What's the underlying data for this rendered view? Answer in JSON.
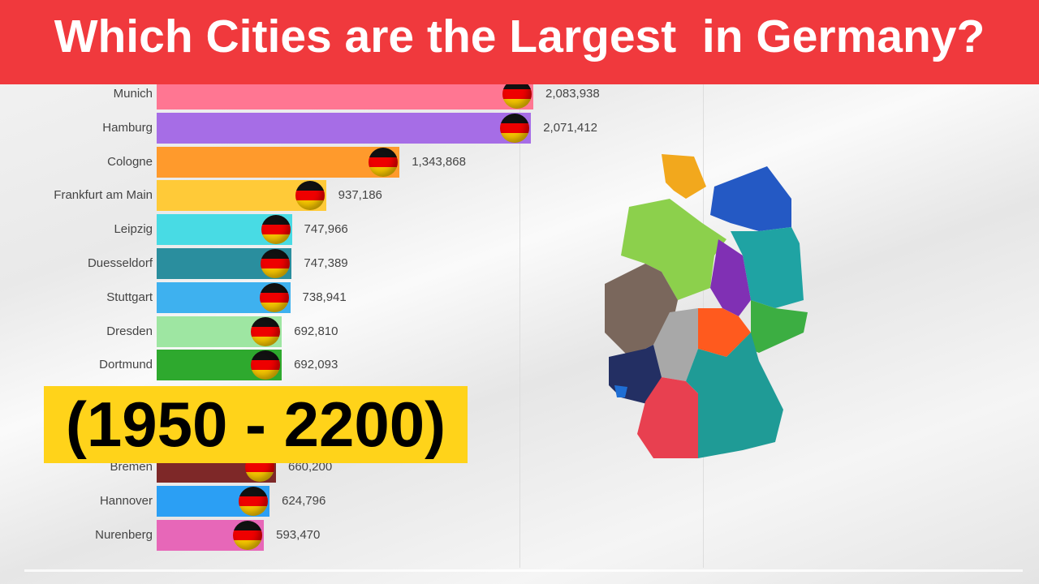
{
  "title": "Which Cities are the Largest  in Germany?",
  "period_label": "(1950 - 2200)",
  "chart_data": {
    "type": "bar",
    "orientation": "horizontal",
    "title": "Which Cities are the Largest  in Germany?",
    "categories": [
      "Munich",
      "Hamburg",
      "Cologne",
      "Frankfurt am Main",
      "Leipzig",
      "Duesseldorf",
      "Stuttgart",
      "Dresden",
      "Dortmund",
      "Bremen",
      "Hannover",
      "Nurenberg"
    ],
    "values": [
      2083938,
      2071412,
      1343868,
      937186,
      747966,
      747389,
      738941,
      692810,
      692093,
      660200,
      624796,
      593470
    ],
    "value_labels": [
      "2,083,938",
      "2,071,412",
      "1,343,868",
      "937,186",
      "747,966",
      "747,389",
      "738,941",
      "692,810",
      "692,093",
      "660,200",
      "624,796",
      "593,470"
    ],
    "colors": [
      "#ff7692",
      "#a66de6",
      "#ff9a2c",
      "#ffca38",
      "#48dbe4",
      "#2a8e9e",
      "#3eb1ef",
      "#9ee6a2",
      "#2ea92e",
      "#7e2828",
      "#2b9ff4",
      "#e767b8"
    ],
    "xlim": [
      0,
      2100000
    ],
    "icon": "germany-flag-icon",
    "grid": true
  },
  "colors": {
    "title_bar": "#f0393d",
    "period_box": "#ffd31a"
  }
}
